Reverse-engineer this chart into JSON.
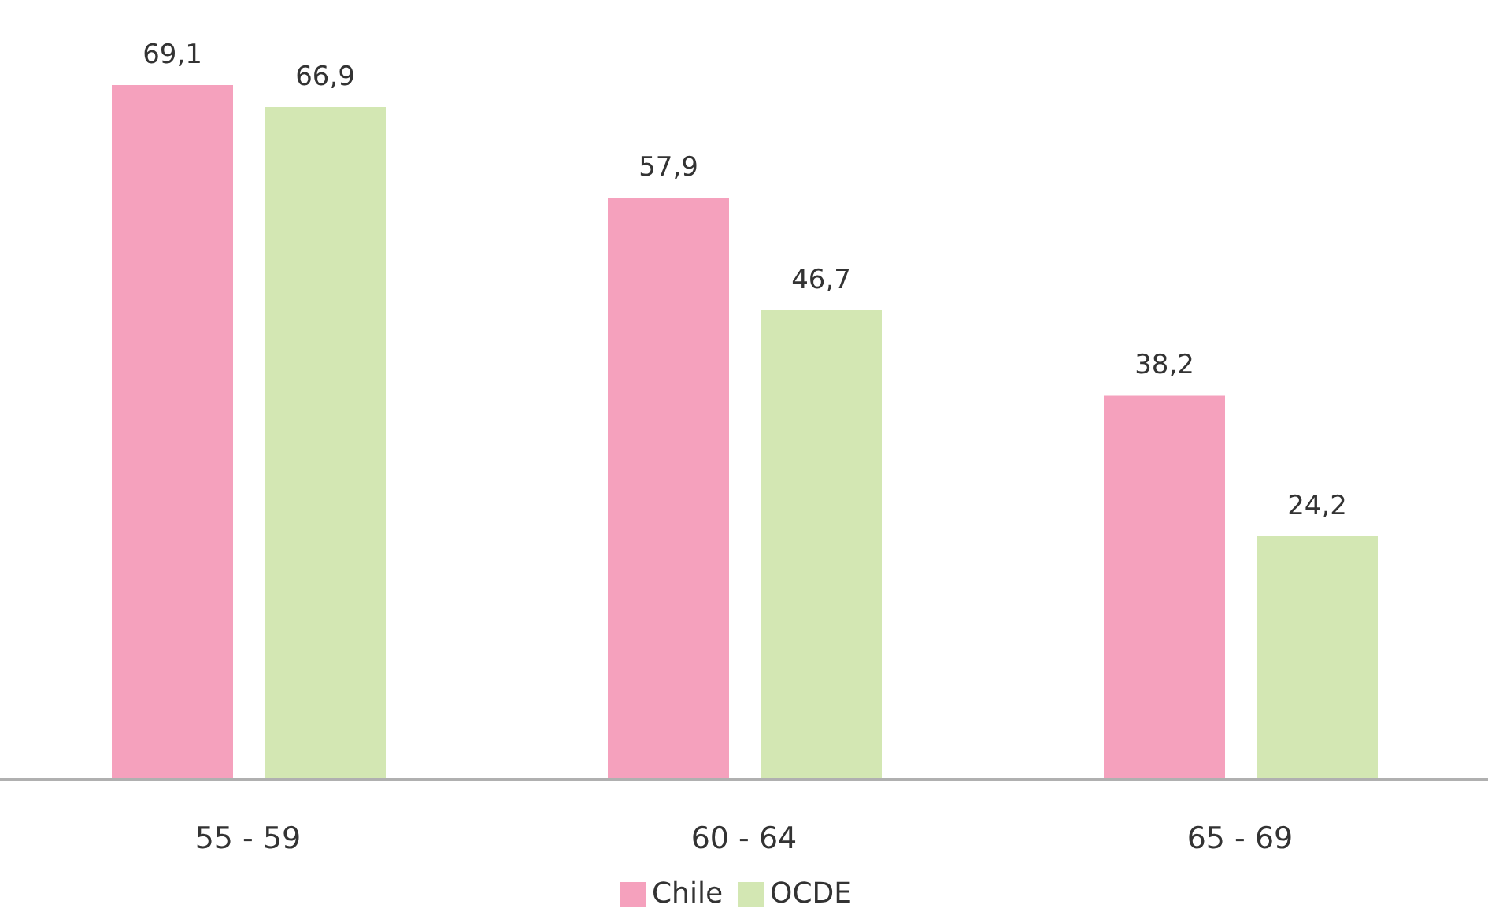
{
  "chart_data": {
    "type": "bar",
    "categories": [
      "55 - 59",
      "60 - 64",
      "65 - 69"
    ],
    "series": [
      {
        "name": "Chile",
        "color": "#f5a1bd",
        "values": [
          69.1,
          57.9,
          38.2
        ],
        "value_labels": [
          "69,1",
          "57,9",
          "38,2"
        ]
      },
      {
        "name": "OCDE",
        "color": "#d3e7b3",
        "values": [
          66.9,
          46.7,
          24.2
        ],
        "value_labels": [
          "66,9",
          "46,7",
          "24,2"
        ]
      }
    ],
    "legend": "bottom",
    "grid": false
  }
}
